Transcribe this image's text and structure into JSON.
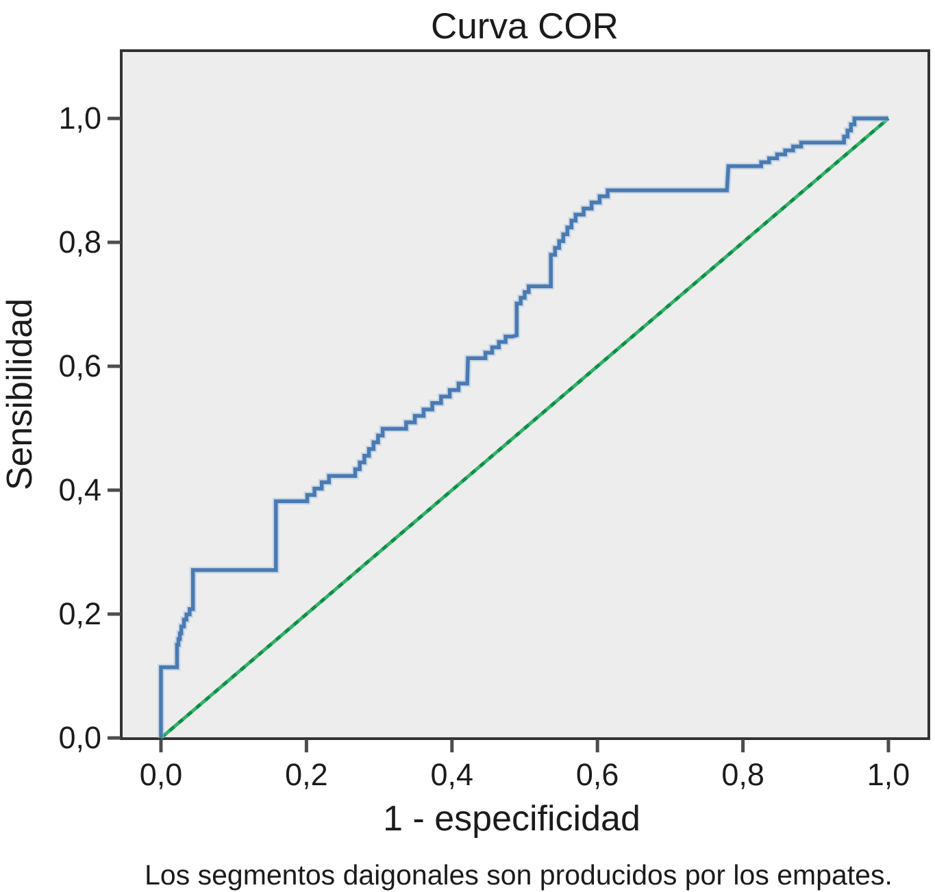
{
  "title": "Curva COR",
  "chart_data": {
    "type": "line",
    "title": "Curva COR",
    "xlabel": "1 - especificidad",
    "ylabel": "Sensibilidad",
    "footnote": "Los segmentos daigonales son producidos por los empates.",
    "xlim": [
      0.0,
      1.0
    ],
    "ylim": [
      0.0,
      1.0
    ],
    "x_tick_labels": [
      "0,0",
      "0,2",
      "0,4",
      "0,6",
      "0,8",
      "1,0"
    ],
    "y_tick_labels": [
      "0,0",
      "0,2",
      "0,4",
      "0,6",
      "0,8",
      "1,0"
    ],
    "x_tick_values": [
      0.0,
      0.2,
      0.4,
      0.6,
      0.8,
      1.0
    ],
    "y_tick_values": [
      0.0,
      0.2,
      0.4,
      0.6,
      0.8,
      1.0
    ],
    "decimal_style": "comma",
    "grid": false,
    "legend": "none",
    "plot_background": "#ededed",
    "frame_color": "#333333",
    "tick_color": "#4d4d4d",
    "series": [
      {
        "name": "roc-curve",
        "style": "stepped",
        "color": "#4a7ab2",
        "halo_color": "#aac5df",
        "points": [
          [
            0.0,
            0.0
          ],
          [
            0.0,
            0.114
          ],
          [
            0.022,
            0.114
          ],
          [
            0.022,
            0.141
          ],
          [
            0.028,
            0.169
          ],
          [
            0.035,
            0.191
          ],
          [
            0.044,
            0.208
          ],
          [
            0.044,
            0.271
          ],
          [
            0.158,
            0.271
          ],
          [
            0.158,
            0.382
          ],
          [
            0.201,
            0.382
          ],
          [
            0.241,
            0.423
          ],
          [
            0.267,
            0.423
          ],
          [
            0.311,
            0.499
          ],
          [
            0.337,
            0.499
          ],
          [
            0.421,
            0.572
          ],
          [
            0.422,
            0.613
          ],
          [
            0.446,
            0.613
          ],
          [
            0.483,
            0.648
          ],
          [
            0.489,
            0.65
          ],
          [
            0.489,
            0.692
          ],
          [
            0.511,
            0.729
          ],
          [
            0.536,
            0.729
          ],
          [
            0.536,
            0.769
          ],
          [
            0.57,
            0.835
          ],
          [
            0.625,
            0.884
          ],
          [
            0.778,
            0.884
          ],
          [
            0.78,
            0.923
          ],
          [
            0.825,
            0.923
          ],
          [
            0.891,
            0.961
          ],
          [
            0.939,
            0.961
          ],
          [
            0.958,
            1.0
          ],
          [
            1.0,
            1.0
          ]
        ]
      },
      {
        "name": "reference-diagonal",
        "style": "dotted",
        "color": "#35b169",
        "accent_color": "#0d8f47",
        "points": [
          [
            0.0,
            0.0
          ],
          [
            1.0,
            1.0
          ]
        ]
      }
    ]
  }
}
